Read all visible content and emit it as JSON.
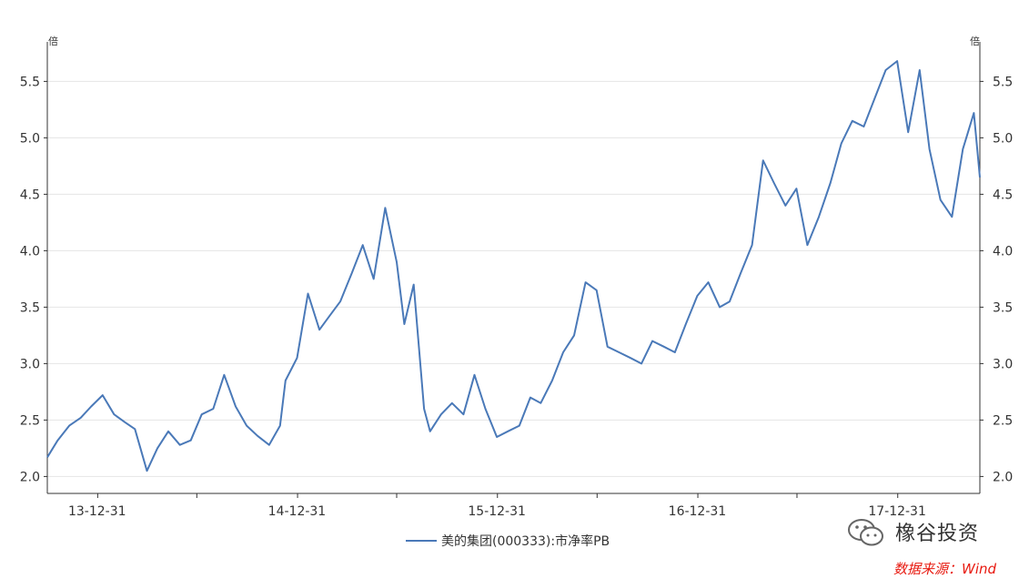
{
  "chart_data": {
    "type": "line",
    "y_unit_left": "倍",
    "y_unit_right": "倍",
    "y_ticks": [
      2.0,
      2.5,
      3.0,
      3.5,
      4.0,
      4.5,
      5.0,
      5.5
    ],
    "y_tick_labels": [
      "2.0",
      "2.5",
      "3.0",
      "3.5",
      "4.0",
      "4.5",
      "5.0",
      "5.5"
    ],
    "ylim": [
      1.85,
      5.85
    ],
    "x_tick_labels": [
      "13-12-31",
      "14-12-31",
      "15-12-31",
      "16-12-31",
      "17-12-31"
    ],
    "xlim": [
      "2013-10-01",
      "2018-05-31"
    ],
    "grid": "horizontal",
    "legend_position": "bottom-center",
    "series": [
      {
        "name": "美的集团(000333):市净率PB",
        "color": "#4a79b8",
        "x": [
          "2013-10-01",
          "2013-10-20",
          "2013-11-10",
          "2013-12-01",
          "2013-12-20",
          "2014-01-10",
          "2014-01-31",
          "2014-02-20",
          "2014-03-10",
          "2014-04-01",
          "2014-04-20",
          "2014-05-10",
          "2014-05-31",
          "2014-06-20",
          "2014-07-10",
          "2014-07-31",
          "2014-08-20",
          "2014-09-10",
          "2014-09-30",
          "2014-10-20",
          "2014-11-10",
          "2014-11-30",
          "2014-12-10",
          "2014-12-31",
          "2015-01-20",
          "2015-02-10",
          "2015-02-28",
          "2015-03-20",
          "2015-04-10",
          "2015-04-30",
          "2015-05-20",
          "2015-06-10",
          "2015-06-20",
          "2015-07-01",
          "2015-07-15",
          "2015-08-01",
          "2015-08-20",
          "2015-08-31",
          "2015-09-20",
          "2015-10-10",
          "2015-10-31",
          "2015-11-20",
          "2015-12-10",
          "2015-12-31",
          "2016-01-20",
          "2016-02-10",
          "2016-03-01",
          "2016-03-20",
          "2016-04-10",
          "2016-04-30",
          "2016-05-20",
          "2016-06-10",
          "2016-06-30",
          "2016-07-20",
          "2016-08-10",
          "2016-08-31",
          "2016-09-20",
          "2016-10-10",
          "2016-10-31",
          "2016-11-20",
          "2016-12-10",
          "2016-12-31",
          "2017-01-20",
          "2017-02-10",
          "2017-02-28",
          "2017-03-20",
          "2017-04-10",
          "2017-04-30",
          "2017-05-20",
          "2017-06-10",
          "2017-06-30",
          "2017-07-20",
          "2017-08-10",
          "2017-08-31",
          "2017-09-20",
          "2017-10-10",
          "2017-10-31",
          "2017-11-20",
          "2017-12-10",
          "2017-12-31",
          "2018-01-20",
          "2018-02-10",
          "2018-02-28",
          "2018-03-20",
          "2018-04-10",
          "2018-04-30",
          "2018-05-20",
          "2018-05-31"
        ],
        "y": [
          2.17,
          2.32,
          2.45,
          2.52,
          2.62,
          2.72,
          2.55,
          2.48,
          2.42,
          2.05,
          2.25,
          2.4,
          2.28,
          2.32,
          2.55,
          2.6,
          2.9,
          2.62,
          2.45,
          2.36,
          2.28,
          2.45,
          2.85,
          3.05,
          3.62,
          3.3,
          3.42,
          3.55,
          3.8,
          4.05,
          3.75,
          4.38,
          4.15,
          3.9,
          3.35,
          3.7,
          2.6,
          2.4,
          2.55,
          2.65,
          2.55,
          2.9,
          2.6,
          2.35,
          2.4,
          2.45,
          2.7,
          2.65,
          2.85,
          3.1,
          3.25,
          3.72,
          3.65,
          3.15,
          3.1,
          3.05,
          3.0,
          3.2,
          3.15,
          3.1,
          3.35,
          3.6,
          3.72,
          3.5,
          3.55,
          3.8,
          4.05,
          4.8,
          4.6,
          4.4,
          4.55,
          4.05,
          4.3,
          4.6,
          4.95,
          5.15,
          5.1,
          5.35,
          5.6,
          5.68,
          5.05,
          5.6,
          4.9,
          4.45,
          4.3,
          4.9,
          5.22,
          4.65
        ]
      }
    ]
  },
  "watermark": {
    "text": "橡谷投资",
    "source": "数据来源：Wind"
  }
}
